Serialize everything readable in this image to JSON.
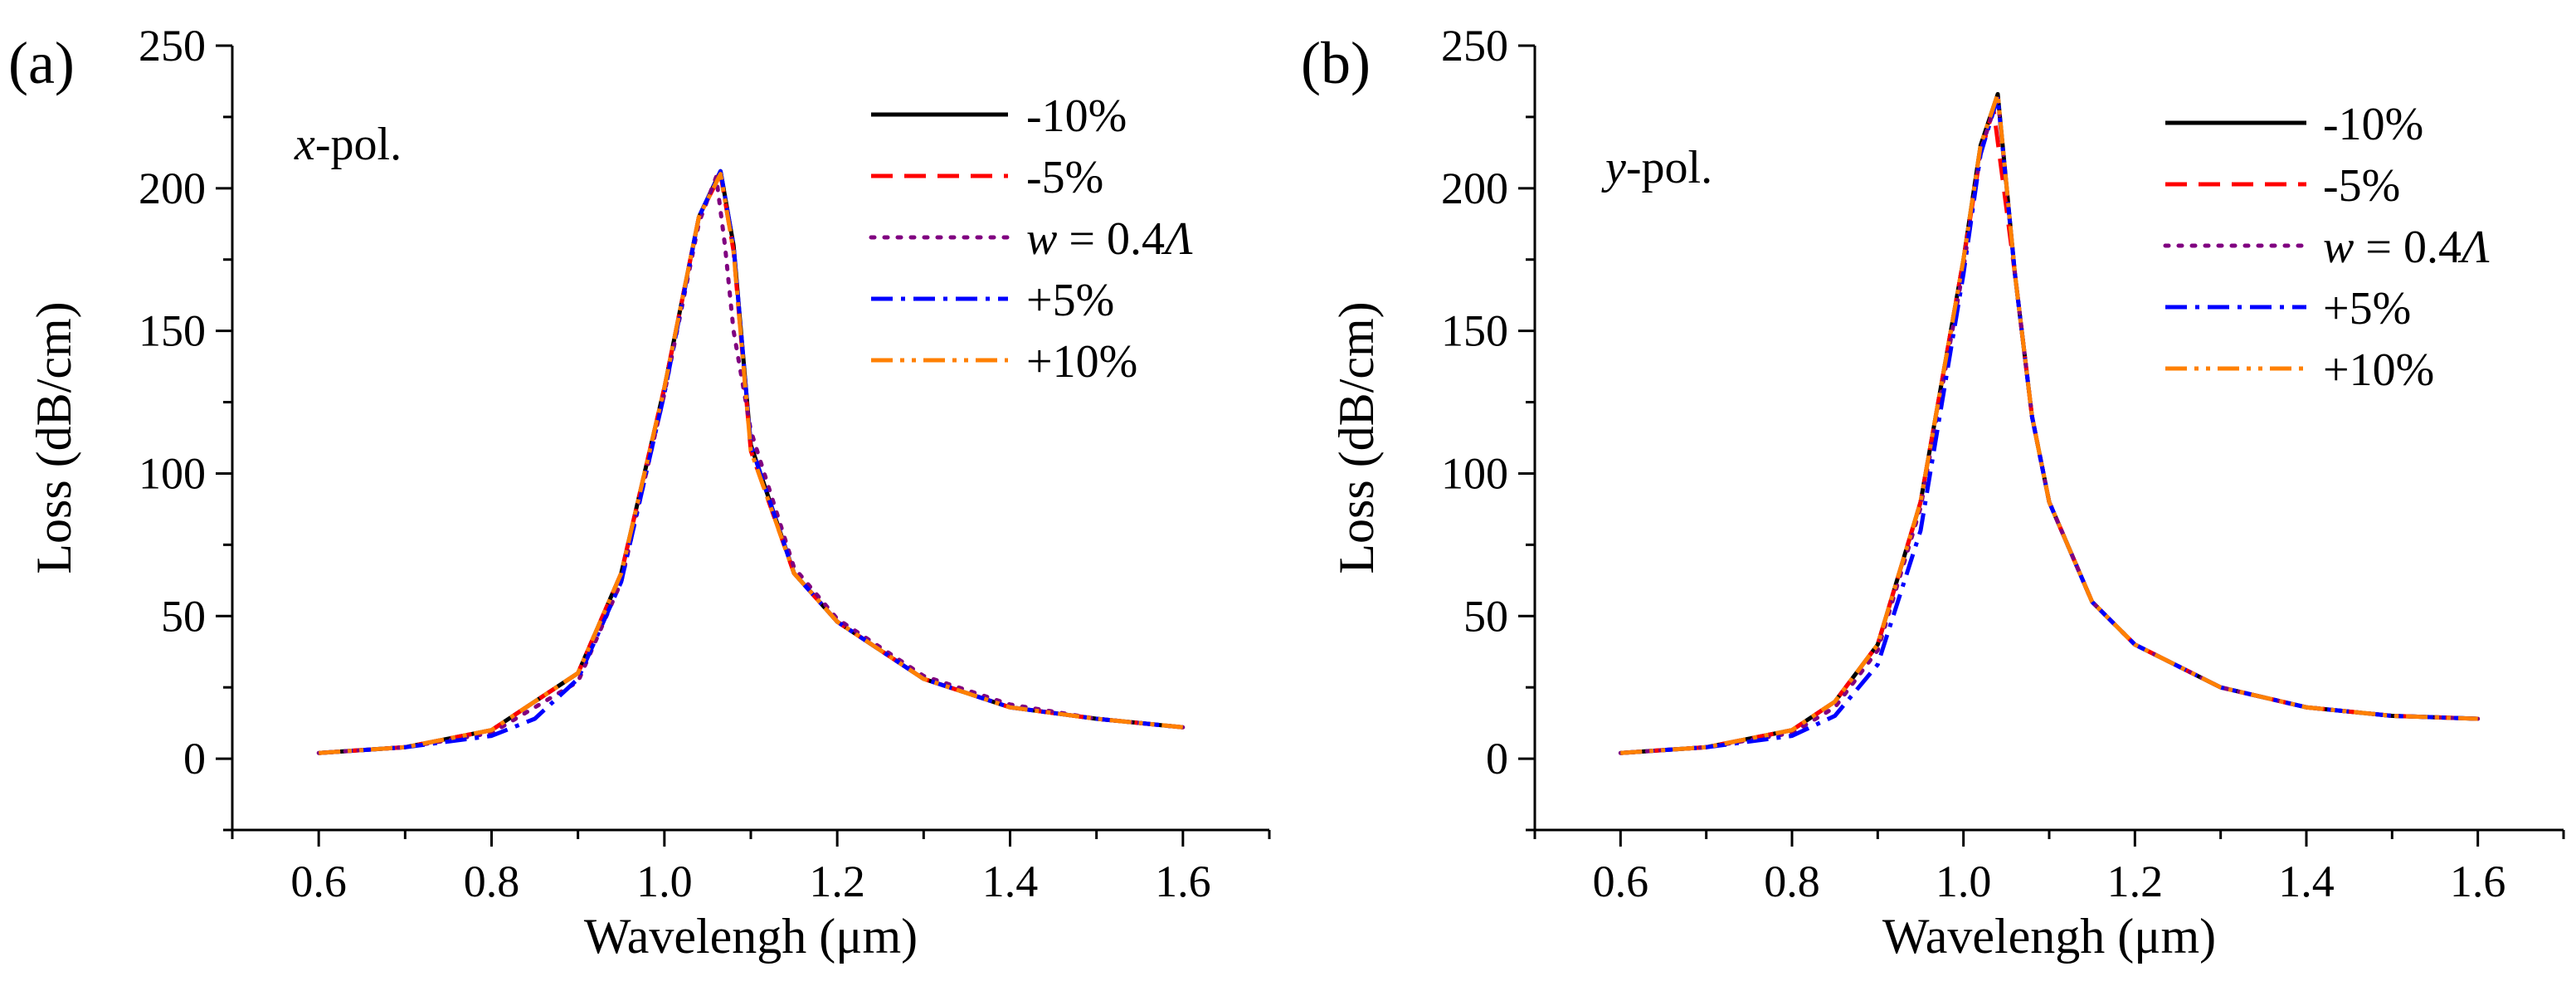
{
  "chart_data": [
    {
      "type": "line",
      "panel_label": "(a)",
      "annotation": {
        "var": "x",
        "rest": "-pol."
      },
      "xlabel": "Wavelengh (μm)",
      "ylabel": "Loss (dB/cm)",
      "xlim": [
        0.5,
        1.7
      ],
      "ylim": [
        -25,
        250
      ],
      "xticks": [
        0.6,
        0.8,
        1.0,
        1.2,
        1.4,
        1.6
      ],
      "xtick_labels": [
        "0.6",
        "0.8",
        "1.0",
        "1.2",
        "1.4",
        "1.6"
      ],
      "yticks": [
        0,
        50,
        100,
        150,
        200,
        250
      ],
      "ytick_labels": [
        "0",
        "50",
        "100",
        "150",
        "200",
        "250"
      ],
      "legend_position": "top-right",
      "series": [
        {
          "name": "-10%",
          "color": "#000000",
          "dash": "solid",
          "x": [
            0.6,
            0.7,
            0.8,
            0.9,
            0.95,
            1.0,
            1.04,
            1.065,
            1.08,
            1.1,
            1.15,
            1.2,
            1.3,
            1.4,
            1.5,
            1.6
          ],
          "y": [
            2,
            4,
            10,
            30,
            65,
            130,
            190,
            206,
            180,
            110,
            65,
            48,
            28,
            18,
            14,
            11
          ]
        },
        {
          "name": "-5%",
          "color": "#ff0000",
          "dash": "dashed",
          "x": [
            0.6,
            0.7,
            0.8,
            0.9,
            0.95,
            1.0,
            1.04,
            1.065,
            1.08,
            1.1,
            1.15,
            1.2,
            1.3,
            1.4,
            1.5,
            1.6
          ],
          "y": [
            2,
            4,
            10,
            30,
            65,
            130,
            190,
            205,
            178,
            108,
            65,
            48,
            28,
            18,
            14,
            11
          ]
        },
        {
          "name": "w = 0.4Λ",
          "name_parts": {
            "var": "w",
            "mid": " = 0.4",
            "sym": "Λ"
          },
          "color": "#800080",
          "dash": "dotted",
          "x": [
            0.6,
            0.7,
            0.8,
            0.9,
            0.95,
            1.0,
            1.04,
            1.06,
            1.07,
            1.08,
            1.1,
            1.15,
            1.2,
            1.3,
            1.4,
            1.5,
            1.6
          ],
          "y": [
            2,
            4,
            9,
            27,
            62,
            128,
            188,
            204,
            180,
            150,
            115,
            67,
            49,
            29,
            19,
            14,
            11
          ]
        },
        {
          "name": "+5%",
          "color": "#0000ff",
          "dash": "dashdot",
          "x": [
            0.6,
            0.7,
            0.8,
            0.85,
            0.9,
            0.95,
            1.0,
            1.04,
            1.065,
            1.08,
            1.1,
            1.15,
            1.2,
            1.3,
            1.4,
            1.5,
            1.6
          ],
          "y": [
            2,
            4,
            8,
            14,
            28,
            62,
            128,
            190,
            206,
            180,
            110,
            65,
            48,
            28,
            18,
            14,
            11
          ]
        },
        {
          "name": "+10%",
          "color": "#ff8000",
          "dash": "dashdotdot",
          "x": [
            0.6,
            0.7,
            0.8,
            0.9,
            0.95,
            1.0,
            1.04,
            1.065,
            1.08,
            1.1,
            1.15,
            1.2,
            1.3,
            1.4,
            1.5,
            1.6
          ],
          "y": [
            2,
            4,
            10,
            30,
            65,
            130,
            190,
            205,
            178,
            108,
            65,
            48,
            28,
            18,
            14,
            11
          ]
        }
      ]
    },
    {
      "type": "line",
      "panel_label": "(b)",
      "annotation": {
        "var": "y",
        "rest": "-pol."
      },
      "xlabel": "Wavelengh (μm)",
      "ylabel": "Loss (dB/cm)",
      "xlim": [
        0.5,
        1.7
      ],
      "ylim": [
        -25,
        250
      ],
      "xticks": [
        0.6,
        0.8,
        1.0,
        1.2,
        1.4,
        1.6
      ],
      "xtick_labels": [
        "0.6",
        "0.8",
        "1.0",
        "1.2",
        "1.4",
        "1.6"
      ],
      "yticks": [
        0,
        50,
        100,
        150,
        200,
        250
      ],
      "ytick_labels": [
        "0",
        "50",
        "100",
        "150",
        "200",
        "250"
      ],
      "legend_position": "top-right",
      "series": [
        {
          "name": "-10%",
          "color": "#000000",
          "dash": "solid",
          "x": [
            0.6,
            0.7,
            0.8,
            0.85,
            0.9,
            0.95,
            1.0,
            1.02,
            1.04,
            1.06,
            1.08,
            1.1,
            1.15,
            1.2,
            1.3,
            1.4,
            1.5,
            1.6
          ],
          "y": [
            2,
            4,
            10,
            20,
            40,
            90,
            175,
            215,
            233,
            170,
            120,
            90,
            55,
            40,
            25,
            18,
            15,
            14
          ]
        },
        {
          "name": "-5%",
          "color": "#ff0000",
          "dash": "dashed",
          "x": [
            0.6,
            0.7,
            0.8,
            0.85,
            0.9,
            0.95,
            1.0,
            1.02,
            1.035,
            1.06,
            1.08,
            1.1,
            1.15,
            1.2,
            1.3,
            1.4,
            1.5,
            1.6
          ],
          "y": [
            2,
            4,
            10,
            20,
            40,
            90,
            175,
            212,
            228,
            170,
            120,
            90,
            55,
            40,
            25,
            18,
            15,
            14
          ]
        },
        {
          "name": "w = 0.4Λ",
          "name_parts": {
            "var": "w",
            "mid": " = 0.4",
            "sym": "Λ"
          },
          "color": "#800080",
          "dash": "dotted",
          "x": [
            0.6,
            0.7,
            0.8,
            0.85,
            0.9,
            0.95,
            1.0,
            1.02,
            1.04,
            1.06,
            1.08,
            1.1,
            1.15,
            1.2,
            1.3,
            1.4,
            1.5,
            1.6
          ],
          "y": [
            2,
            4,
            9,
            18,
            38,
            88,
            172,
            213,
            232,
            170,
            120,
            90,
            55,
            40,
            25,
            18,
            15,
            14
          ]
        },
        {
          "name": "+5%",
          "color": "#0000ff",
          "dash": "dashdot",
          "x": [
            0.6,
            0.7,
            0.8,
            0.85,
            0.9,
            0.95,
            1.0,
            1.02,
            1.04,
            1.06,
            1.08,
            1.1,
            1.15,
            1.2,
            1.3,
            1.4,
            1.5,
            1.6
          ],
          "y": [
            2,
            4,
            8,
            15,
            33,
            80,
            170,
            212,
            232,
            170,
            120,
            90,
            55,
            40,
            25,
            18,
            15,
            14
          ]
        },
        {
          "name": "+10%",
          "color": "#ff8000",
          "dash": "dashdotdot",
          "x": [
            0.6,
            0.7,
            0.8,
            0.85,
            0.9,
            0.95,
            1.0,
            1.02,
            1.04,
            1.06,
            1.08,
            1.1,
            1.15,
            1.2,
            1.3,
            1.4,
            1.5,
            1.6
          ],
          "y": [
            2,
            4,
            10,
            20,
            40,
            90,
            175,
            215,
            233,
            170,
            120,
            90,
            55,
            40,
            25,
            18,
            15,
            14
          ]
        }
      ]
    }
  ]
}
